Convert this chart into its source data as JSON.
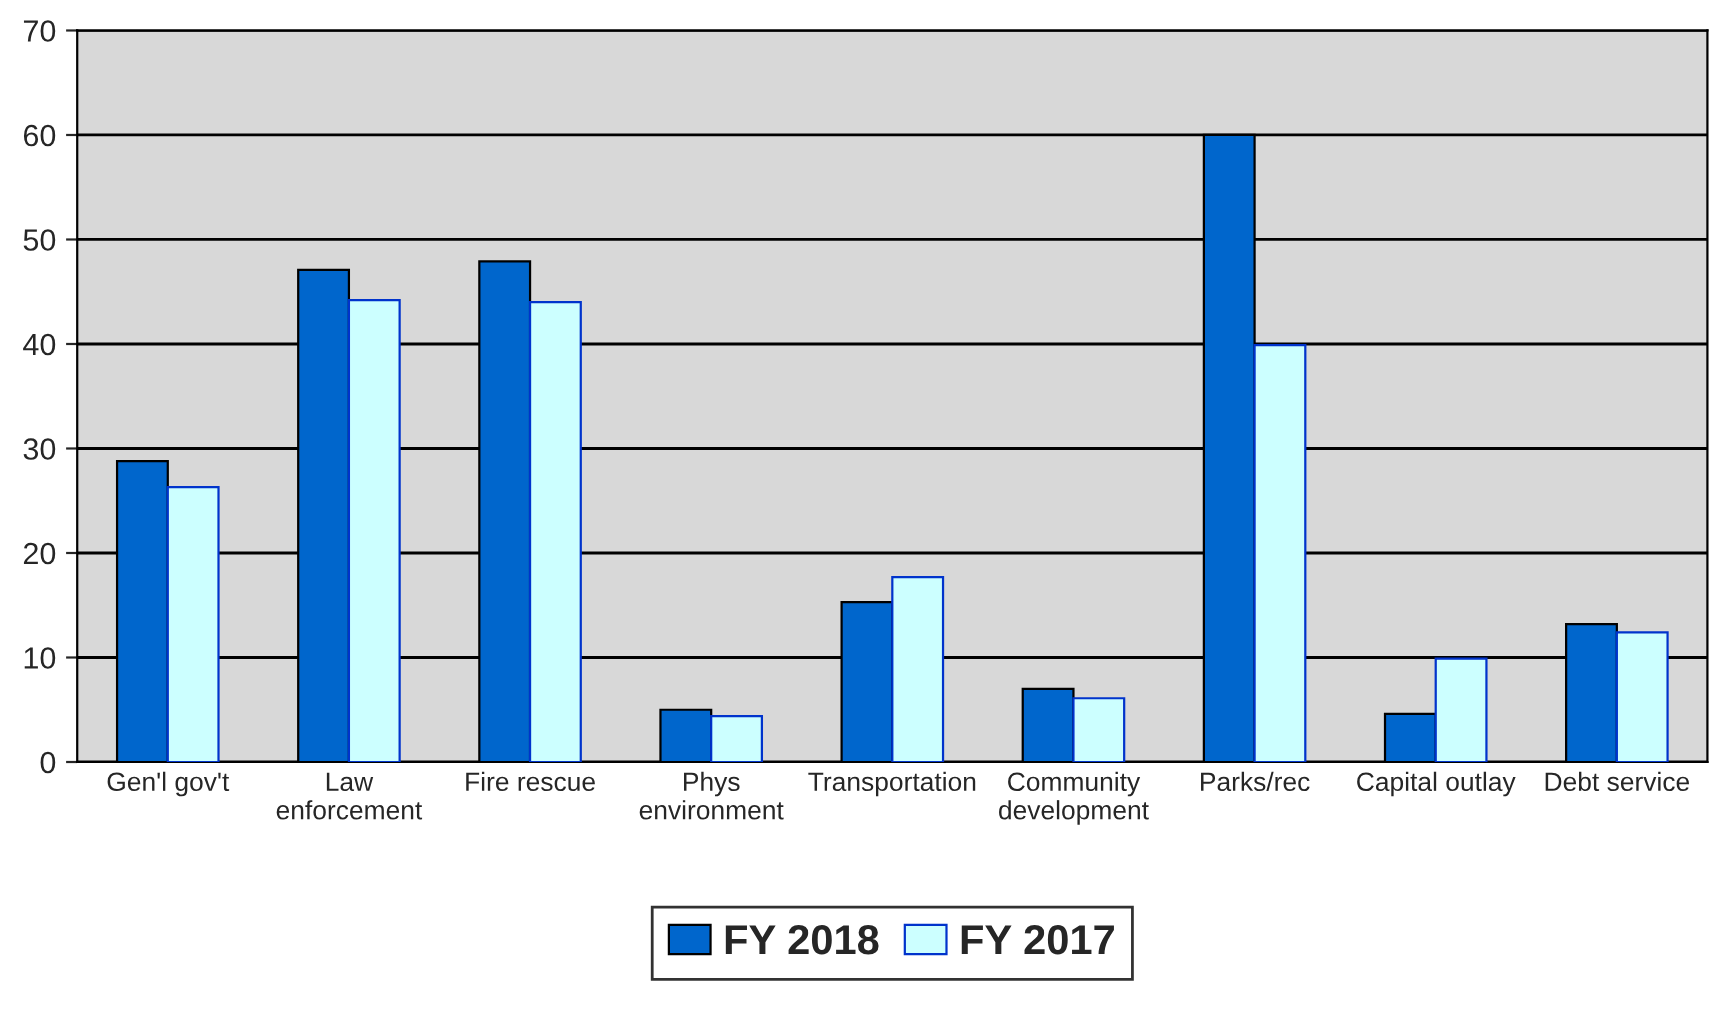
{
  "chart_data": {
    "type": "bar",
    "categories": [
      "Gen'l gov't",
      "Law\nenforcement",
      "Fire rescue",
      "Phys\nenvironment",
      "Transportation",
      "Community\ndevelopment",
      "Parks/rec",
      "Capital outlay",
      "Debt service"
    ],
    "series": [
      {
        "name": "FY 2018",
        "color": "#0066cc",
        "values": [
          28.8,
          47.1,
          47.9,
          5,
          15.3,
          7,
          60,
          4.6,
          13.2
        ]
      },
      {
        "name": "FY 2017",
        "color": "#ccffff",
        "values": [
          26.3,
          44.2,
          44,
          4.4,
          17.7,
          6.1,
          39.9,
          9.9,
          12.4
        ]
      }
    ],
    "ylim": [
      0,
      70
    ],
    "yticks": [
      0,
      10,
      20,
      30,
      40,
      50,
      60,
      70
    ],
    "grid": "y",
    "legend": "bottom"
  }
}
